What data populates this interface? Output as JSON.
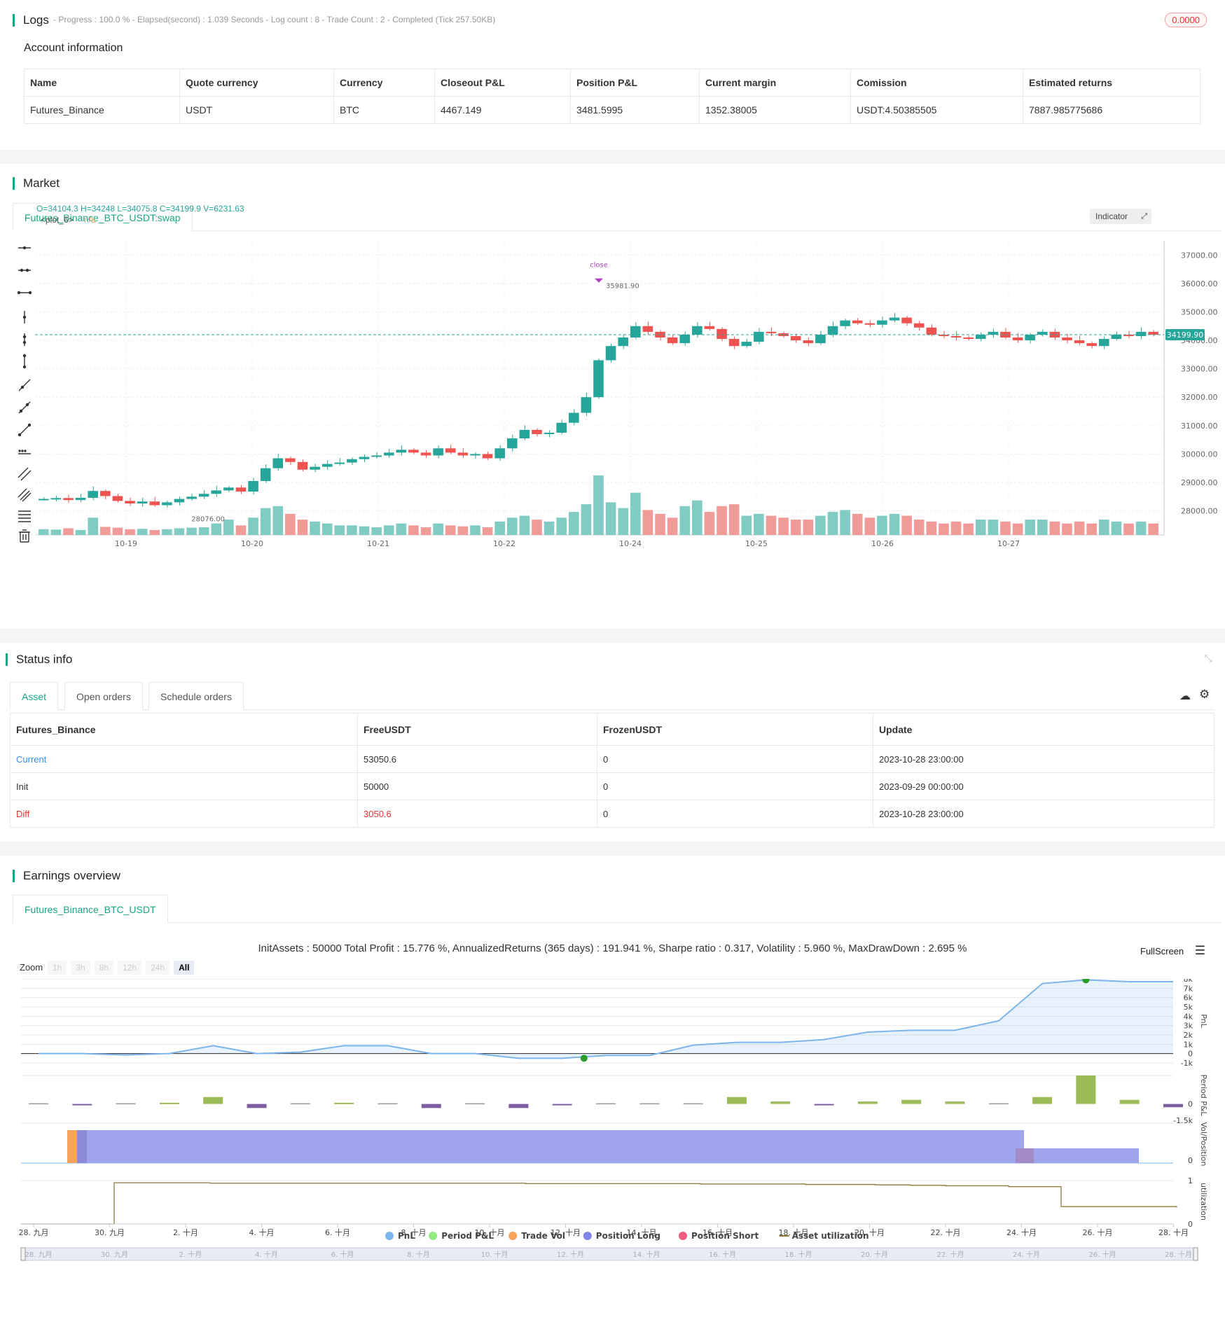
{
  "logs": {
    "title": "Logs",
    "summary": "- Progress : 100.0 % - Elapsed(second) : 1.039  Seconds - Log count : 8 - Trade Count : 2 - Completed (Tick 257.50KB)",
    "badge": "0.0000"
  },
  "account": {
    "title": "Account information",
    "headers": [
      "Name",
      "Quote currency",
      "Currency",
      "Closeout P&L",
      "Position P&L",
      "Current margin",
      "Comission",
      "Estimated returns"
    ],
    "row": [
      "Futures_Binance",
      "USDT",
      "BTC",
      "4467.149",
      "3481.5995",
      "1352.38005",
      "USDT:4.50385505",
      "7887.985775686"
    ]
  },
  "market": {
    "title": "Market",
    "tab": "Futures_Binance_BTC_USDT:swap",
    "ohlc": "O=34104.3 H=34248 L=34075.8 C=34199.9 V=6231.63",
    "plot_label": "<plot_6>",
    "plot_value": "n/a",
    "indicator_btn": "Indicator",
    "close_label": "close",
    "high_label": "35981.90",
    "low_label": "28076.00",
    "last_price": "34199.90",
    "y_ticks": [
      "37000.00",
      "36000.00",
      "35000.00",
      "34000.00",
      "33000.00",
      "32000.00",
      "31000.00",
      "30000.00",
      "29000.00",
      "28000.00"
    ],
    "x_ticks": [
      "10-19",
      "10-20",
      "10-21",
      "10-22",
      "10-24",
      "10-25",
      "10-26",
      "10-27"
    ]
  },
  "status": {
    "title": "Status info",
    "tabs": [
      "Asset",
      "Open orders",
      "Schedule orders"
    ],
    "headers": [
      "Futures_Binance",
      "FreeUSDT",
      "FrozenUSDT",
      "Update"
    ],
    "rows": [
      {
        "label": "Current",
        "free": "53050.6",
        "frozen": "0",
        "update": "2023-10-28 23:00:00"
      },
      {
        "label": "Init",
        "free": "50000",
        "frozen": "0",
        "update": "2023-09-29 00:00:00"
      },
      {
        "label": "Diff",
        "free": "3050.6",
        "frozen": "0",
        "update": "2023-10-28 23:00:00"
      }
    ]
  },
  "earnings": {
    "title": "Earnings overview",
    "tab": "Futures_Binance_BTC_USDT",
    "summary": "InitAssets : 50000 Total Profit : 15.776 %, AnnualizedReturns (365 days) : 191.941 %, Sharpe ratio : 0.317, Volatility : 5.960 %, MaxDrawDown : 2.695 %",
    "fullscreen": "FullScreen",
    "zoom_label": "Zoom",
    "zoom_options": [
      "1h",
      "3h",
      "8h",
      "12h",
      "24h",
      "All"
    ],
    "pnl_ticks": [
      "8k",
      "7k",
      "6k",
      "5k",
      "4k",
      "3k",
      "2k",
      "1k",
      "0",
      "-1k"
    ],
    "period_ticks": [
      "0",
      "-1.5k"
    ],
    "vol_ticks": [
      "0"
    ],
    "util_ticks": [
      "1",
      "0"
    ],
    "axis_titles": [
      "PnL",
      "Period P&L",
      "Vol/Position",
      "utilization"
    ],
    "x_ticks": [
      "28. 九月",
      "30. 九月",
      "2. 十月",
      "4. 十月",
      "6. 十月",
      "8. 十月",
      "10. 十月",
      "12. 十月",
      "14. 十月",
      "16. 十月",
      "18. 十月",
      "20. 十月",
      "22. 十月",
      "24. 十月",
      "26. 十月",
      "28. 十月"
    ],
    "legend": [
      {
        "name": "PnL",
        "color": "#7cb5ec"
      },
      {
        "name": "Period P&L",
        "color": "#90ed7d"
      },
      {
        "name": "Trade Vol",
        "color": "#f7a35c"
      },
      {
        "name": "Position Long",
        "color": "#8085e9"
      },
      {
        "name": "Position Short",
        "color": "#f15c80"
      },
      {
        "name": "Asset utilization",
        "color": "#8d7a3a"
      }
    ]
  },
  "chart_data": [
    {
      "type": "candlestick",
      "title": "",
      "x_ticks": [
        "10-19",
        "10-20",
        "10-21",
        "10-22",
        "10-24",
        "10-25",
        "10-26",
        "10-27"
      ],
      "ylim": [
        27300,
        37500
      ],
      "close": [
        28420,
        28450,
        28380,
        28460,
        28700,
        28520,
        28350,
        28260,
        28330,
        28200,
        28300,
        28420,
        28500,
        28600,
        28720,
        28820,
        28680,
        29050,
        29500,
        29850,
        29720,
        29450,
        29550,
        29650,
        29700,
        29820,
        29900,
        29950,
        30050,
        30150,
        30050,
        29950,
        30200,
        30050,
        29950,
        30000,
        29850,
        30200,
        30550,
        30850,
        30700,
        30750,
        31100,
        31450,
        32000,
        33300,
        33800,
        34100,
        34500,
        34300,
        34100,
        33900,
        34200,
        34500,
        34400,
        34050,
        33800,
        33950,
        34300,
        34250,
        34150,
        34000,
        33900,
        34200,
        34500,
        34700,
        34600,
        34550,
        34700,
        34800,
        34600,
        34450,
        34200,
        34150,
        34100,
        34050,
        34200,
        34300,
        34100,
        34000,
        34200,
        34300,
        34100,
        34000,
        33900,
        33800,
        34050,
        34200,
        34150,
        34300,
        34200
      ],
      "volume": [
        300,
        280,
        350,
        260,
        900,
        420,
        380,
        300,
        320,
        260,
        300,
        350,
        380,
        400,
        600,
        800,
        500,
        900,
        1400,
        1500,
        1100,
        800,
        700,
        600,
        500,
        500,
        450,
        400,
        500,
        600,
        500,
        400,
        600,
        500,
        450,
        500,
        400,
        700,
        900,
        1000,
        800,
        700,
        900,
        1200,
        1600,
        3100,
        1700,
        1400,
        2200,
        1300,
        1100,
        900,
        1500,
        1800,
        1200,
        1500,
        1600,
        1000,
        1100,
        1000,
        900,
        800,
        800,
        1000,
        1200,
        1300,
        1100,
        900,
        1000,
        1100,
        1000,
        800,
        700,
        600,
        700,
        600,
        800,
        800,
        700,
        600,
        800,
        800,
        700,
        600,
        700,
        600,
        800,
        700,
        600,
        700,
        600
      ]
    },
    {
      "type": "line",
      "series": [
        {
          "name": "PnL",
          "values": [
            0,
            0,
            -150,
            0,
            850,
            0,
            150,
            850,
            850,
            0,
            0,
            -500,
            -500,
            -200,
            -200,
            900,
            1200,
            1200,
            1500,
            2300,
            2500,
            2500,
            3500,
            7500,
            7900,
            7700,
            7700
          ]
        }
      ],
      "ylim": [
        -1000,
        8000
      ]
    },
    {
      "type": "bar",
      "series": [
        {
          "name": "Period P&L",
          "values": [
            0,
            -150,
            0,
            150,
            850,
            -500,
            0,
            150,
            0,
            -500,
            0,
            -500,
            -150,
            0,
            0,
            0,
            850,
            300,
            -150,
            300,
            500,
            300,
            0,
            850,
            3500,
            500,
            -400
          ]
        }
      ],
      "ylim": [
        -1500,
        3500
      ]
    },
    {
      "type": "area",
      "series": [
        {
          "name": "Trade Vol",
          "values": [
            1
          ]
        },
        {
          "name": "Position Long",
          "values": [
            1,
            1,
            1,
            1,
            1,
            1,
            1,
            1,
            1,
            1,
            1,
            1,
            1,
            1,
            1,
            1,
            1,
            1,
            1,
            1,
            1,
            1,
            1,
            1,
            0.5,
            0.5,
            0
          ]
        },
        {
          "name": "Position Short",
          "values": [
            0
          ]
        }
      ]
    },
    {
      "type": "line",
      "series": [
        {
          "name": "Asset utilization",
          "values": [
            0,
            0.95,
            0.95,
            0.94,
            0.94,
            0.94,
            0.93,
            0.93,
            0.92,
            0.92,
            0.91,
            0.9,
            0.89,
            0.88,
            0.86,
            0.4,
            0.38
          ]
        }
      ],
      "ylim": [
        0,
        1
      ]
    }
  ]
}
